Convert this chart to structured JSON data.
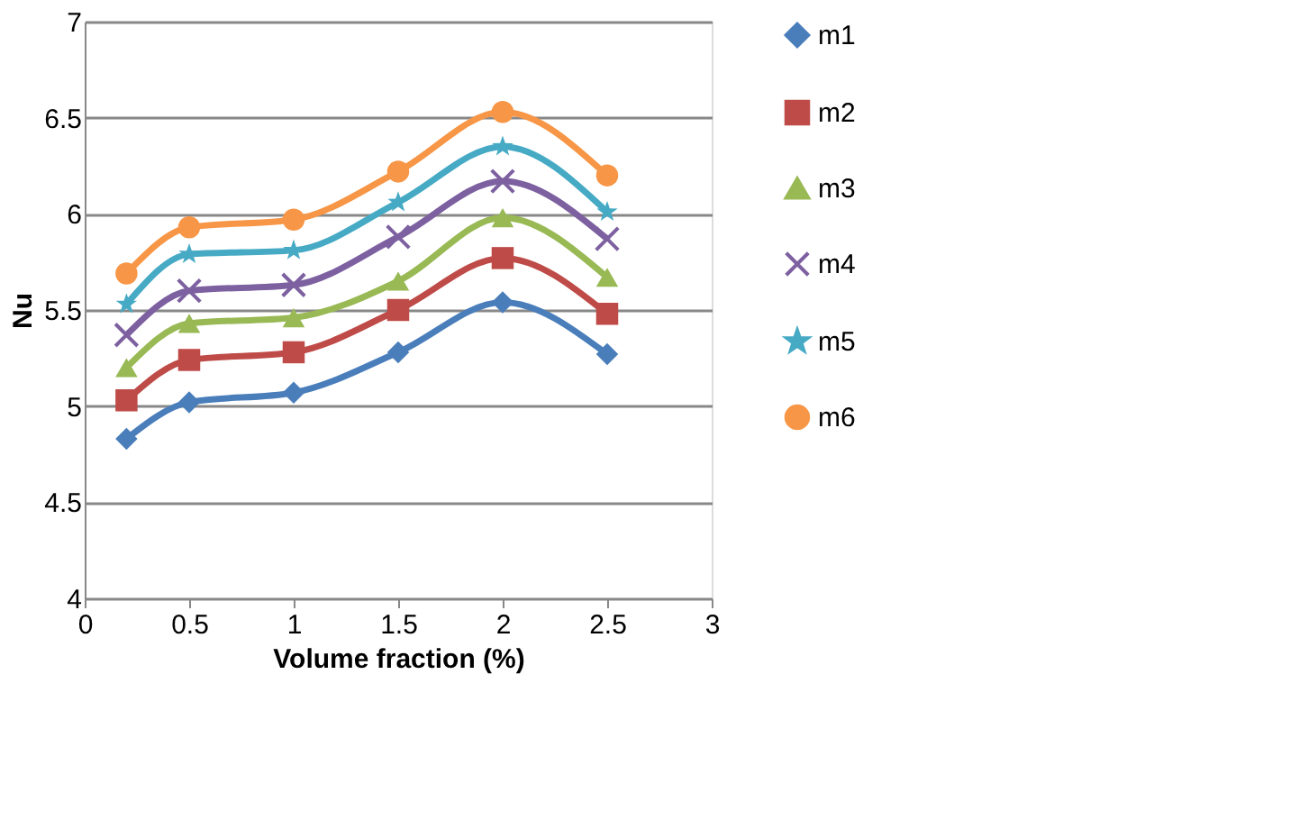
{
  "chart_data": {
    "type": "line",
    "xlabel": "Volume fraction (%)",
    "ylabel": "Nu",
    "x": [
      0.2,
      0.5,
      1,
      1.5,
      2,
      2.5
    ],
    "xlim": [
      0,
      3
    ],
    "xticks": [
      0,
      0.5,
      1,
      1.5,
      2,
      2.5,
      3
    ],
    "ylim": [
      4,
      7
    ],
    "yticks": [
      4,
      4.5,
      5,
      5.5,
      6,
      6.5,
      7
    ],
    "grid": "y",
    "legend": "right",
    "series": [
      {
        "name": "m1",
        "color": "#4a7ebb",
        "marker": "diamond",
        "values": [
          4.83,
          5.02,
          5.07,
          5.28,
          5.54,
          5.27
        ]
      },
      {
        "name": "m2",
        "color": "#be4b48",
        "marker": "square",
        "values": [
          5.03,
          5.24,
          5.28,
          5.5,
          5.77,
          5.48
        ]
      },
      {
        "name": "m3",
        "color": "#98b954",
        "marker": "triangle",
        "values": [
          5.2,
          5.43,
          5.46,
          5.65,
          5.98,
          5.67
        ]
      },
      {
        "name": "m4",
        "color": "#7d60a0",
        "marker": "cross",
        "values": [
          5.37,
          5.6,
          5.63,
          5.88,
          6.17,
          5.87
        ]
      },
      {
        "name": "m5",
        "color": "#46aac5",
        "marker": "star",
        "values": [
          5.53,
          5.79,
          5.81,
          6.06,
          6.35,
          6.01
        ]
      },
      {
        "name": "m6",
        "color": "#f79646",
        "marker": "circle",
        "values": [
          5.69,
          5.93,
          5.97,
          6.22,
          6.53,
          6.2
        ]
      }
    ]
  }
}
